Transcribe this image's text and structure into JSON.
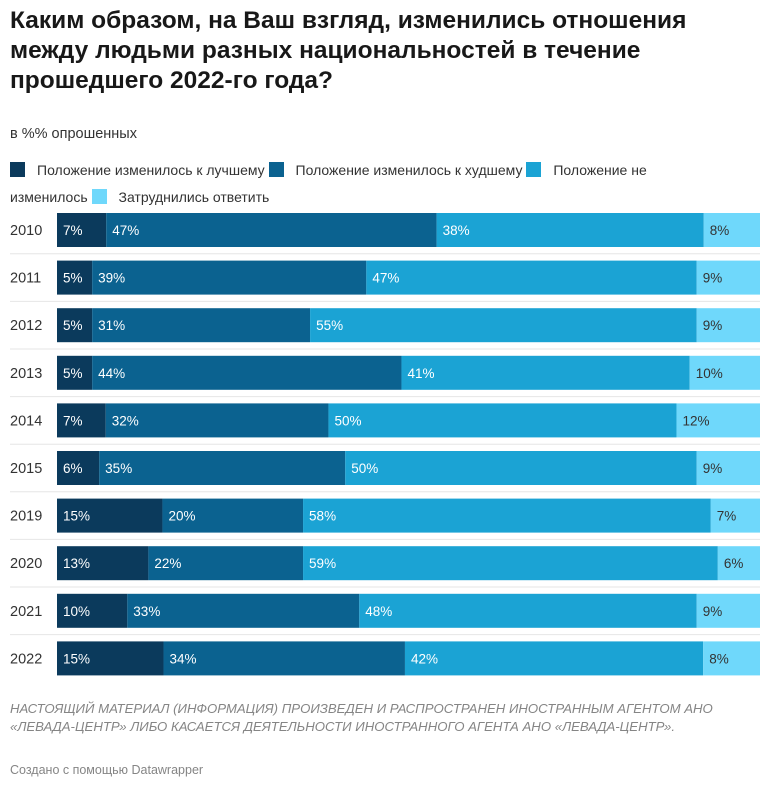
{
  "title": "Каким образом, на Ваш взгляд, изменились отношения между людьми разных национальностей в течение прошедшего 2022-го года?",
  "subtitle": "в %% опрошенных",
  "note": "НАСТОЯЩИЙ МАТЕРИАЛ (ИНФОРМАЦИЯ) ПРОИЗВЕДЕН И РАСПРОСТРАНЕН ИНОСТРАННЫМ АГЕНТОМ АНО «ЛЕВАДА-ЦЕНТР» ЛИБО КАСАЕТСЯ ДЕЯТЕЛЬНОСТИ ИНОСТРАННОГО АГЕНТА АНО «ЛЕВАДА-ЦЕНТР».",
  "credit": "Создано с помощью Datawrapper",
  "chart_data": {
    "type": "bar",
    "orientation": "horizontal",
    "stacked": true,
    "categories": [
      "2010",
      "2011",
      "2012",
      "2013",
      "2014",
      "2015",
      "2019",
      "2020",
      "2021",
      "2022"
    ],
    "series": [
      {
        "name": "Положение изменилось к лучшему",
        "color": "#0b3a5c",
        "label_color": "#ffffff",
        "values": [
          7,
          5,
          5,
          5,
          7,
          6,
          15,
          13,
          10,
          15
        ]
      },
      {
        "name": "Положение изменилось к худшему",
        "color": "#0b6290",
        "label_color": "#ffffff",
        "values": [
          47,
          39,
          31,
          44,
          32,
          35,
          20,
          22,
          33,
          34
        ]
      },
      {
        "name": "Положение не изменилось",
        "color": "#1ba3d4",
        "label_color": "#ffffff",
        "values": [
          38,
          47,
          55,
          41,
          50,
          50,
          58,
          59,
          48,
          42
        ]
      },
      {
        "name": "Затруднились ответить",
        "color": "#6fd8fb",
        "label_color": "#333333",
        "values": [
          8,
          9,
          9,
          10,
          12,
          9,
          7,
          6,
          9,
          8
        ]
      }
    ],
    "value_suffix": "%",
    "xlim": [
      0,
      100
    ],
    "legend_position": "top"
  }
}
